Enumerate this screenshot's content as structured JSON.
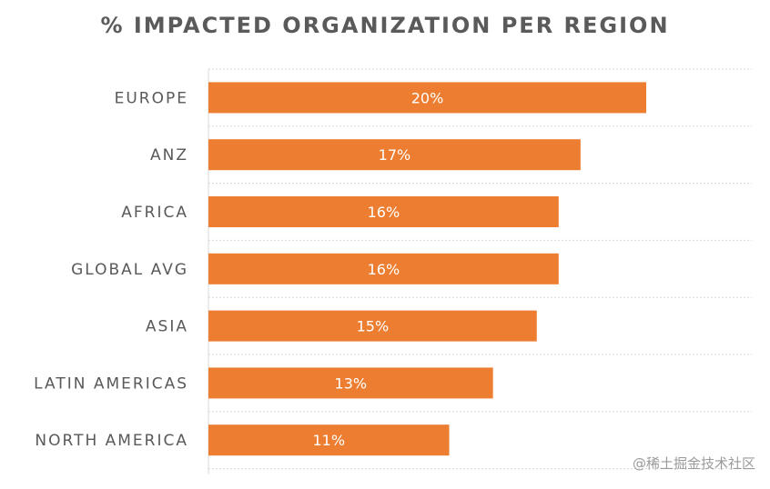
{
  "chart_data": {
    "type": "bar",
    "orientation": "horizontal",
    "title": "% IMPACTED ORGANIZATION PER REGION",
    "categories": [
      "EUROPE",
      "ANZ",
      "AFRICA",
      "GLOBAL AVG",
      "ASIA",
      "LATIN AMERICAS",
      "NORTH AMERICA"
    ],
    "values": [
      20,
      17,
      16,
      16,
      15,
      13,
      11
    ],
    "value_labels": [
      "20%",
      "17%",
      "16%",
      "16%",
      "15%",
      "13%",
      "11%"
    ],
    "xlim": [
      0,
      20
    ],
    "grid": "dotted horizontal separators",
    "legend": "none",
    "bar_color": "#ED7D31",
    "grid_color": "#d9d9d9",
    "axis_color": "#d9d9d9"
  },
  "watermark": "@稀土掘金技术社区"
}
